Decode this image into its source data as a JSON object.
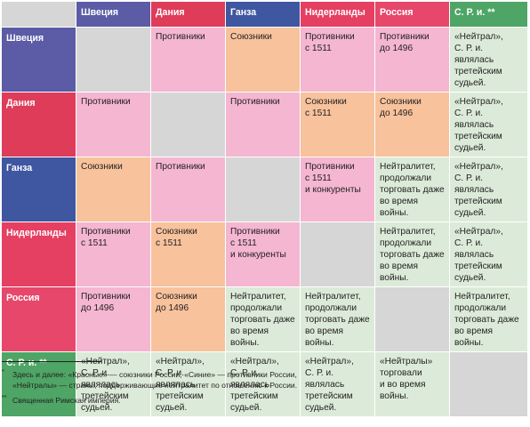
{
  "columns": [
    "Швеция",
    "Дания",
    "Ганза",
    "Нидерланды",
    "Россия",
    "С. Р. и. **"
  ],
  "rows": [
    {
      "label": "Швеция",
      "cells": [
        {
          "type": "diag",
          "lines": []
        },
        {
          "type": "enemy",
          "lines": [
            "Противники"
          ]
        },
        {
          "type": "ally",
          "lines": [
            "Союзники"
          ]
        },
        {
          "type": "enemy",
          "lines": [
            "Противники",
            "с 1511"
          ]
        },
        {
          "type": "enemy",
          "lines": [
            "Противники",
            "до 1496"
          ]
        },
        {
          "type": "neutral",
          "lines": [
            "«Нейтрал»,",
            "С. Р. и. являлась",
            "третейским",
            "судьей."
          ]
        }
      ]
    },
    {
      "label": "Дания",
      "cells": [
        {
          "type": "enemy",
          "lines": [
            "Противники"
          ]
        },
        {
          "type": "diag",
          "lines": []
        },
        {
          "type": "enemy",
          "lines": [
            "Противники"
          ]
        },
        {
          "type": "ally",
          "lines": [
            "Союзники",
            "с 1511"
          ]
        },
        {
          "type": "ally",
          "lines": [
            "Союзники",
            "до 1496"
          ]
        },
        {
          "type": "neutral",
          "lines": [
            "«Нейтрал»,",
            "С. Р. и. являлась",
            "третейским",
            "судьей."
          ]
        }
      ]
    },
    {
      "label": "Ганза",
      "cells": [
        {
          "type": "ally",
          "lines": [
            "Союзники"
          ]
        },
        {
          "type": "enemy",
          "lines": [
            "Противники"
          ]
        },
        {
          "type": "diag",
          "lines": []
        },
        {
          "type": "enemy",
          "lines": [
            "Противники",
            "с 1511",
            "и конкуренты"
          ]
        },
        {
          "type": "neutral",
          "lines": [
            "Нейтралитет,",
            "продолжали",
            "торговать даже",
            "во время войны."
          ]
        },
        {
          "type": "neutral",
          "lines": [
            "«Нейтрал»,",
            "С. Р. и. являлась",
            "третейским",
            "судьей."
          ]
        }
      ]
    },
    {
      "label": "Нидерланды",
      "cells": [
        {
          "type": "enemy",
          "lines": [
            "Противники",
            "с 1511"
          ]
        },
        {
          "type": "ally",
          "lines": [
            "Союзники",
            "с 1511"
          ]
        },
        {
          "type": "enemy",
          "lines": [
            "Противники",
            "с 1511",
            "и конкуренты"
          ]
        },
        {
          "type": "diag",
          "lines": []
        },
        {
          "type": "neutral",
          "lines": [
            "Нейтралитет,",
            "продолжали",
            "торговать даже",
            "во время войны."
          ]
        },
        {
          "type": "neutral",
          "lines": [
            "«Нейтрал»,",
            "С. Р. и. являлась",
            "третейским",
            "судьей."
          ]
        }
      ]
    },
    {
      "label": "Россия",
      "cells": [
        {
          "type": "enemy",
          "lines": [
            "Противники",
            "до 1496"
          ]
        },
        {
          "type": "ally",
          "lines": [
            "Союзники",
            "до 1496"
          ]
        },
        {
          "type": "neutral",
          "lines": [
            "Нейтралитет,",
            "продолжали",
            "торговать даже",
            "во время войны."
          ]
        },
        {
          "type": "neutral",
          "lines": [
            "Нейтралитет,",
            "продолжали",
            "торговать даже",
            "во время войны."
          ]
        },
        {
          "type": "diag",
          "lines": []
        },
        {
          "type": "neutral",
          "lines": [
            "Нейтралитет,",
            "продолжали",
            "торговать даже",
            "во время войны."
          ]
        }
      ]
    },
    {
      "label": "С. Р. и. **",
      "cells": [
        {
          "type": "neutral",
          "lines": [
            "«Нейтрал»,",
            "С. Р. и. являлась",
            "третейским",
            "судьей."
          ]
        },
        {
          "type": "neutral",
          "lines": [
            "«Нейтрал»,",
            "С. Р. и. являлась",
            "третейским",
            "судьей."
          ]
        },
        {
          "type": "neutral",
          "lines": [
            "«Нейтрал»,",
            "С. Р. и. являлась",
            "третейским",
            "судьей."
          ]
        },
        {
          "type": "neutral",
          "lines": [
            "«Нейтрал»,",
            "С. Р. и. являлась",
            "третейским",
            "судьей."
          ]
        },
        {
          "type": "neutral",
          "lines": [
            "«Нейтралы»",
            "торговали",
            "и во время",
            "войны."
          ]
        },
        {
          "type": "diag",
          "lines": []
        }
      ]
    }
  ],
  "footnotes": [
    {
      "mark": "*",
      "lines": [
        "Здесь и далее: «Красные» — союзники России, «Синие» — противники России,",
        "«Нейтралы» — страны, поддерживающие нейтралитет по отношению к России."
      ]
    },
    {
      "mark": "**",
      "lines": [
        "Священная Римская империя."
      ]
    }
  ],
  "colors": {
    "diagonal": "#d6d6d6",
    "enemy": "#f4b6d0",
    "ally": "#f7c29c",
    "neutral": "#dcebd9",
    "header_sweden": "#5c5ba6",
    "header_denmark": "#df3c5a",
    "header_hansa": "#3f57a1",
    "header_netherlands": "#e53f62",
    "header_russia": "#e6476b",
    "header_hre": "#4ea565"
  }
}
